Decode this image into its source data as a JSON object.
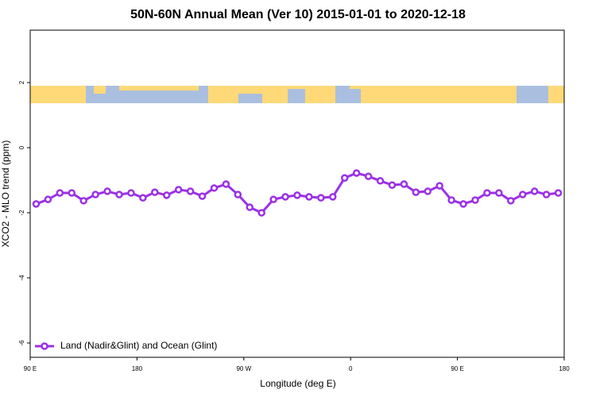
{
  "chart_data": {
    "type": "line",
    "title": "50N-60N Annual Mean (Ver 10)   2015-01-01 to 2020-12-18",
    "xlabel": "Longitude (deg E)",
    "ylabel": "XCO2 - MLO trend (ppm)",
    "xlim": [
      90,
      540
    ],
    "ylim": [
      -6.44,
      3.61
    ],
    "xticks": [
      {
        "value": 90,
        "label": "90 E"
      },
      180,
      {
        "value": 270,
        "label": "90 W"
      },
      {
        "value": 360,
        "label": "0"
      },
      {
        "value": 450,
        "label": "90 E"
      },
      {
        "value": 540,
        "label": "180"
      }
    ],
    "yticks": [
      2,
      0,
      -2,
      -4,
      -6
    ],
    "legend": "bottom-left",
    "x": [
      95,
      105,
      115,
      125,
      135,
      145,
      155,
      165,
      175,
      185,
      195,
      205,
      215,
      225,
      235,
      245,
      255,
      265,
      275,
      285,
      295,
      305,
      315,
      325,
      335,
      345,
      355,
      365,
      375,
      385,
      395,
      405,
      415,
      425,
      435,
      445,
      455,
      465,
      475,
      485,
      495,
      505,
      515,
      525,
      535
    ],
    "series": [
      {
        "name": "Land (Nadir&Glint) and Ocean (Glint)",
        "color": "#9b30e6",
        "values": [
          -1.73,
          -1.59,
          -1.39,
          -1.39,
          -1.63,
          -1.44,
          -1.34,
          -1.44,
          -1.39,
          -1.54,
          -1.37,
          -1.46,
          -1.29,
          -1.34,
          -1.49,
          -1.24,
          -1.12,
          -1.44,
          -1.83,
          -2.0,
          -1.59,
          -1.51,
          -1.46,
          -1.51,
          -1.54,
          -1.51,
          -0.93,
          -0.78,
          -0.88,
          -1.02,
          -1.15,
          -1.12,
          -1.37,
          -1.34,
          -1.17,
          -1.61,
          -1.73,
          -1.61,
          -1.39,
          -1.39,
          -1.63,
          -1.44,
          -1.34,
          -1.44,
          -1.39
        ]
      }
    ]
  }
}
